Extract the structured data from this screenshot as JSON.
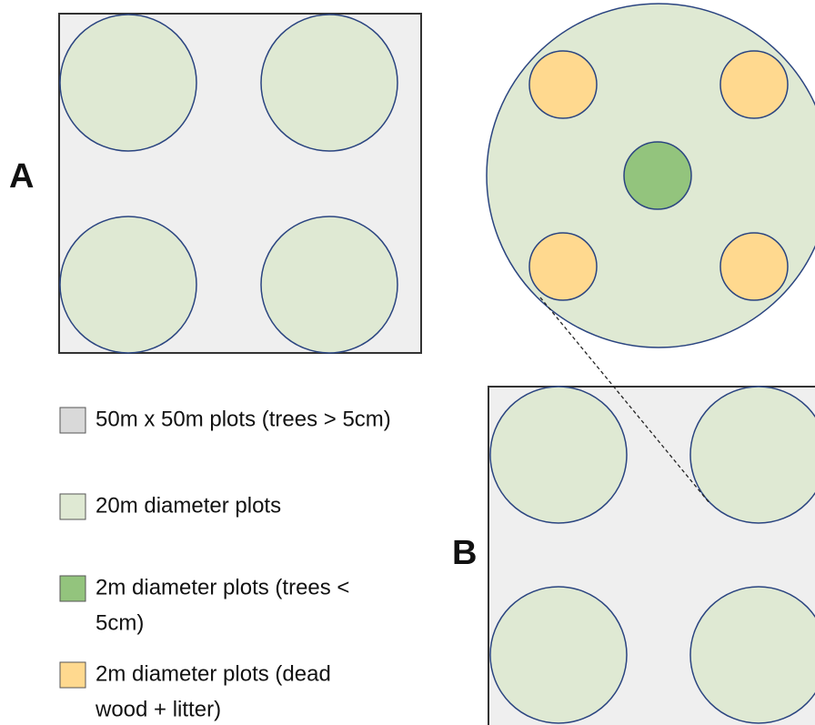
{
  "panels": [
    {
      "label": "A"
    },
    {
      "label": "B"
    }
  ],
  "legend": [
    {
      "lines": [
        "50m x 50m plots (trees > 5cm)"
      ]
    },
    {
      "lines": [
        "20m diameter plots"
      ]
    },
    {
      "lines": [
        "2m diameter plots (trees <",
        "5cm)"
      ]
    },
    {
      "lines": [
        "2m diameter plots (dead",
        "wood + litter)"
      ]
    }
  ]
}
